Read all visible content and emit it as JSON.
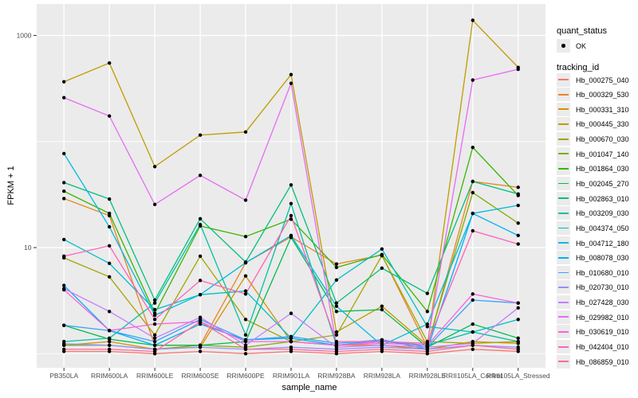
{
  "style": {
    "panel_bg": "#EBEBEB",
    "grid_color": "#FFFFFF",
    "point_color": "#000000",
    "axis_text_color": "#4D4D4D",
    "tick_color": "#333333",
    "text_color": "#000000",
    "legend_key_bg": "#EBEBEB"
  },
  "legend": {
    "quant_status_title": "quant_status",
    "quant_status_items": [
      {
        "label": "OK",
        "symbol": "point"
      }
    ],
    "tracking_id_title": "tracking_id"
  },
  "chart_data": {
    "type": "line",
    "title": "",
    "xlabel": "sample_name",
    "ylabel": "FPKM + 1",
    "y_scale": "log10",
    "y_ticks": [
      {
        "label": "10",
        "value": 10
      },
      {
        "label": "1000",
        "value": 1000
      }
    ],
    "y_minor_gridlines": [
      1,
      100
    ],
    "ylim": [
      0.9,
      1500
    ],
    "grid": true,
    "legend_position": "right",
    "x_categories": [
      "PB350LA",
      "RRIM600LA",
      "RRIM600LE",
      "RRIM600SE",
      "RRIM600PE",
      "RRIM901LA",
      "RRIM928BA",
      "RRIM928LA",
      "RRIM928LE",
      "RRII105LA_Control",
      "RRII105LA_Stressed"
    ],
    "series": [
      {
        "name": "Hb_000275_040",
        "color": "#F8766D",
        "values": [
          1.05,
          1.05,
          1.0,
          1.05,
          1.0,
          1.05,
          1.0,
          1.05,
          1.0,
          1.1,
          1.05
        ]
      },
      {
        "name": "Hb_000329_530",
        "color": "#E88526",
        "values": [
          29,
          20,
          1.2,
          1.2,
          7.2,
          12.6,
          7.0,
          8.5,
          1.15,
          42,
          37
        ]
      },
      {
        "name": "Hb_000331_310",
        "color": "#D89000",
        "values": [
          1.2,
          1.3,
          1.1,
          1.15,
          5.4,
          1.3,
          1.2,
          1.2,
          1.1,
          1.3,
          1.25
        ]
      },
      {
        "name": "Hb_000445_330",
        "color": "#C09B00",
        "values": [
          366,
          550,
          58,
          115,
          123,
          428,
          1.6,
          2.8,
          1.2,
          1390,
          500
        ]
      },
      {
        "name": "Hb_000670_030",
        "color": "#A3A500",
        "values": [
          8.0,
          5.3,
          1.5,
          8.3,
          2.1,
          1.3,
          1.5,
          8.4,
          1.3,
          1.25,
          1.3
        ]
      },
      {
        "name": "Hb_001047_140",
        "color": "#7CAE00",
        "values": [
          1.2,
          1.2,
          1.1,
          1.2,
          1.15,
          1.3,
          1.2,
          1.3,
          1.2,
          33,
          17
        ]
      },
      {
        "name": "Hb_001864_030",
        "color": "#39B600",
        "values": [
          34,
          21,
          2.4,
          16,
          12.7,
          18.5,
          6.5,
          8.6,
          2.5,
          88,
          31
        ]
      },
      {
        "name": "Hb_002045_270",
        "color": "#00BB4E",
        "values": [
          1.85,
          1.37,
          1.2,
          1.2,
          1.3,
          12.5,
          2.5,
          2.6,
          1.15,
          1.9,
          1.4
        ]
      },
      {
        "name": "Hb_002863_010",
        "color": "#00BF7D",
        "values": [
          41,
          28.7,
          3.2,
          18.7,
          7.3,
          39,
          3.0,
          6.4,
          3.7,
          42,
          32
        ]
      },
      {
        "name": "Hb_003209_030",
        "color": "#00C1A3",
        "values": [
          1.3,
          1.4,
          3.0,
          16.5,
          1.5,
          26,
          1.2,
          1.3,
          1.2,
          1.6,
          1.3
        ]
      },
      {
        "name": "Hb_004374_050",
        "color": "#00BFC4",
        "values": [
          11.9,
          7.1,
          2.6,
          3.6,
          3.9,
          1.4,
          4.95,
          9.7,
          1.8,
          1.6,
          2.1
        ]
      },
      {
        "name": "Hb_004712_180",
        "color": "#00BAE0",
        "values": [
          77,
          15.7,
          2.3,
          3.6,
          7.2,
          13,
          2.8,
          1.2,
          1.9,
          21,
          25
        ]
      },
      {
        "name": "Hb_008078_030",
        "color": "#00B0F6",
        "values": [
          4.4,
          1.65,
          1.2,
          1.9,
          1.35,
          1.4,
          1.2,
          1.35,
          1.1,
          21,
          13
        ]
      },
      {
        "name": "Hb_010680_010",
        "color": "#35A2FF",
        "values": [
          1.85,
          1.65,
          1.3,
          2.1,
          1.35,
          1.45,
          1.25,
          1.35,
          1.15,
          3.2,
          3.0
        ]
      },
      {
        "name": "Hb_020730_010",
        "color": "#9590FF",
        "values": [
          1.24,
          1.2,
          1.1,
          1.15,
          1.1,
          1.15,
          1.1,
          1.15,
          1.1,
          1.2,
          1.15
        ]
      },
      {
        "name": "Hb_027428_030",
        "color": "#C77CFF",
        "values": [
          4.1,
          2.5,
          1.4,
          2.2,
          1.2,
          2.4,
          1.15,
          1.2,
          1.15,
          1.25,
          2.7
        ]
      },
      {
        "name": "Hb_029982_010",
        "color": "#E76BF3",
        "values": [
          259,
          174,
          25.5,
          48,
          28,
          354,
          1.2,
          1.3,
          1.25,
          380,
          480
        ]
      },
      {
        "name": "Hb_030619_010",
        "color": "#FA62DB",
        "values": [
          4.0,
          1.65,
          1.9,
          2.0,
          1.3,
          1.3,
          1.2,
          1.25,
          1.2,
          3.65,
          3.0
        ]
      },
      {
        "name": "Hb_042404_010",
        "color": "#FF62BC",
        "values": [
          8.3,
          10.4,
          2.1,
          4.9,
          3.65,
          20,
          1.3,
          1.3,
          1.25,
          14.4,
          10.8
        ]
      },
      {
        "name": "Hb_086859_010",
        "color": "#FF6A98",
        "values": [
          1.1,
          1.1,
          1.05,
          2.0,
          1.1,
          1.1,
          1.05,
          1.1,
          1.05,
          1.2,
          1.1
        ]
      }
    ]
  }
}
